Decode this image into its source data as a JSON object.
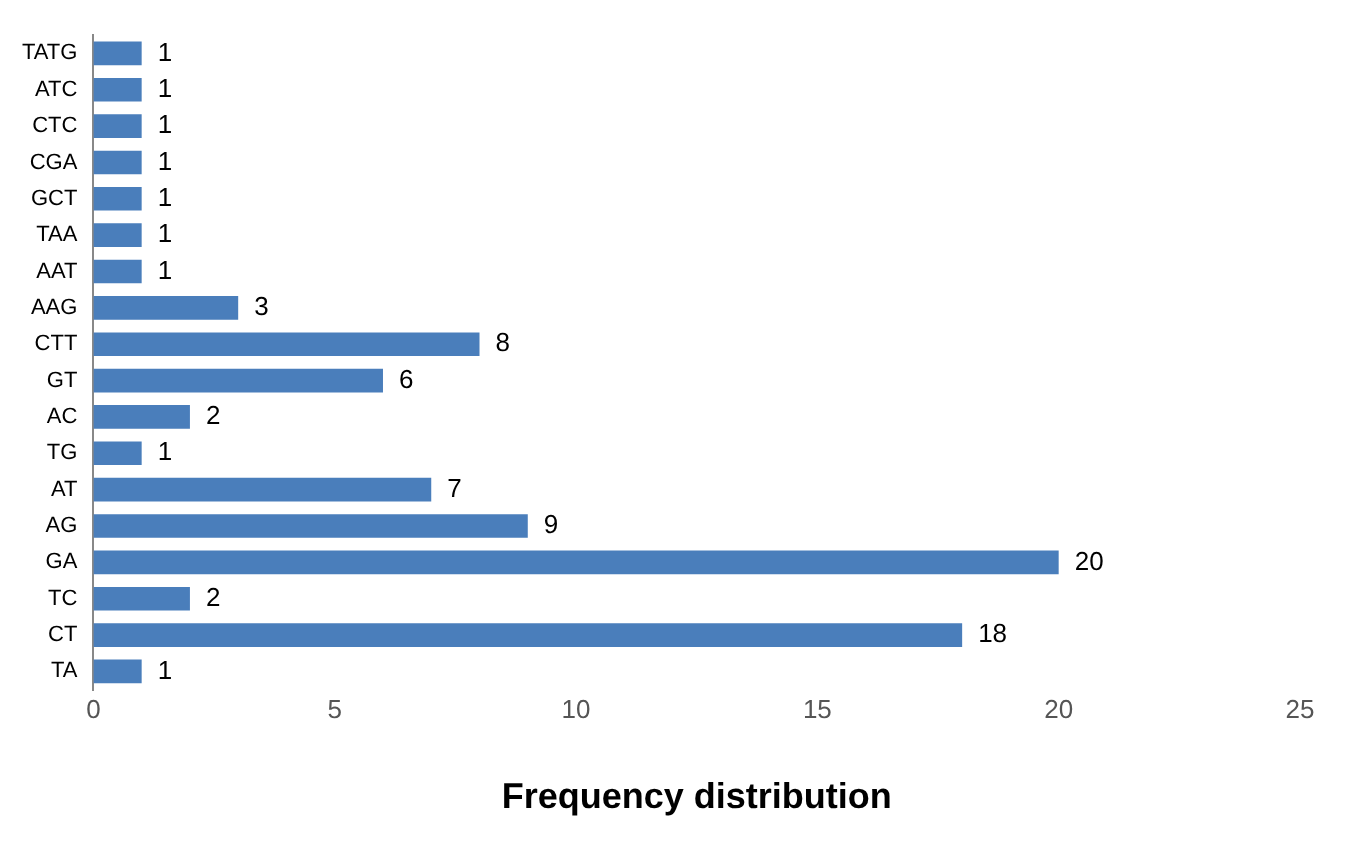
{
  "chart_data": {
    "type": "bar",
    "orientation": "horizontal",
    "xlabel": "Frequency distribution",
    "categories": [
      "TATG",
      "ATC",
      "CTC",
      "CGA",
      "GCT",
      "TAA",
      "AAT",
      "AAG",
      "CTT",
      "GT",
      "AC",
      "TG",
      "AT",
      "AG",
      "GA",
      "TC",
      "CT",
      "TA"
    ],
    "values": [
      1,
      1,
      1,
      1,
      1,
      1,
      1,
      3,
      8,
      6,
      2,
      1,
      7,
      9,
      20,
      2,
      18,
      1
    ],
    "color": "#4a7ebb",
    "xlim": [
      0,
      25
    ],
    "xticks": [
      0,
      5,
      10,
      15,
      20,
      25
    ],
    "grid": false,
    "legend": false,
    "data_labels": true
  }
}
